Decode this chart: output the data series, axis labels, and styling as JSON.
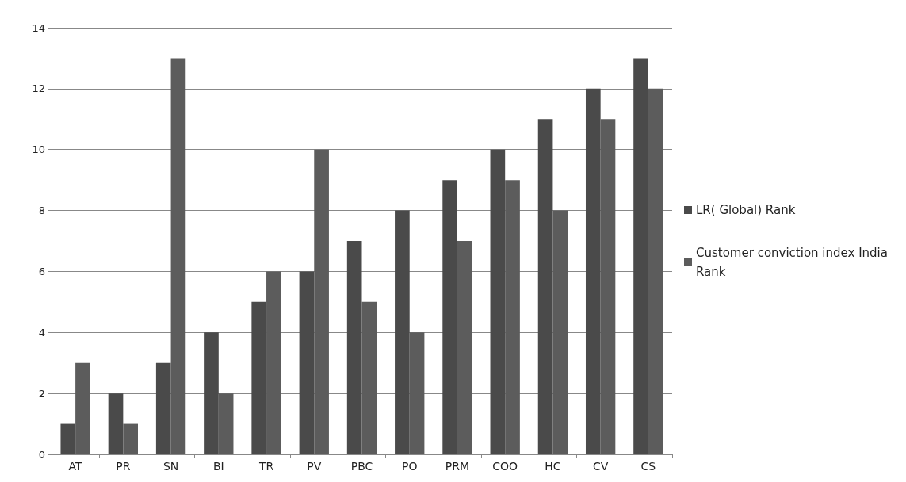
{
  "chart_data": {
    "type": "bar",
    "categories": [
      "AT",
      "PR",
      "SN",
      "BI",
      "TR",
      "PV",
      "PBC",
      "PO",
      "PRM",
      "COO",
      "HC",
      "CV",
      "CS"
    ],
    "series": [
      {
        "name": "LR( Global) Rank",
        "color": "#4a4a4a",
        "values": [
          1,
          2,
          3,
          4,
          5,
          6,
          7,
          8,
          9,
          10,
          11,
          12,
          13
        ]
      },
      {
        "name": "Customer conviction index India Rank",
        "color": "#5c5c5c",
        "values": [
          3,
          1,
          13,
          2,
          6,
          10,
          5,
          4,
          7,
          9,
          8,
          11,
          12
        ]
      }
    ],
    "ylim": [
      0,
      14
    ],
    "yticks": [
      0,
      2,
      4,
      6,
      8,
      10,
      12,
      14
    ],
    "grid": "y",
    "legend": "right"
  }
}
